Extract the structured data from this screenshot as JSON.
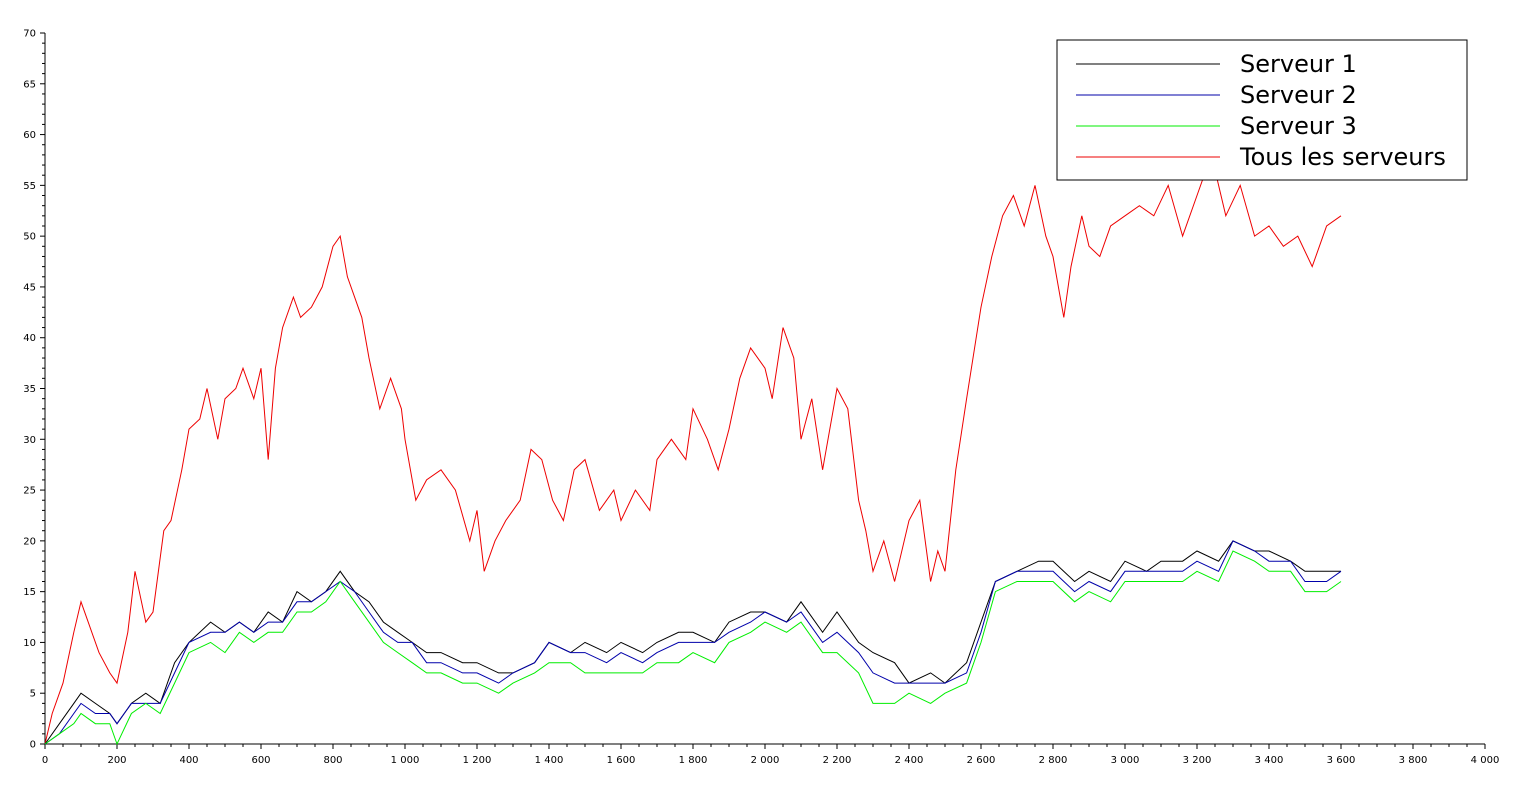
{
  "chart_data": {
    "type": "line",
    "title": "",
    "xlabel": "",
    "ylabel": "",
    "xlim": [
      0,
      4000
    ],
    "ylim": [
      0,
      70
    ],
    "x_ticks": [
      0,
      200,
      400,
      600,
      800,
      1000,
      1200,
      1400,
      1600,
      1800,
      2000,
      2200,
      2400,
      2600,
      2800,
      3000,
      3200,
      3400,
      3600,
      3800,
      4000
    ],
    "x_tick_labels": [
      "0",
      "200",
      "400",
      "600",
      "800",
      "1 000",
      "1 200",
      "1 400",
      "1 600",
      "1 800",
      "2 000",
      "2 200",
      "2 400",
      "2 600",
      "2 800",
      "3 000",
      "3 200",
      "3 400",
      "3 600",
      "3 800",
      "4 000"
    ],
    "y_ticks": [
      0,
      5,
      10,
      15,
      20,
      25,
      30,
      35,
      40,
      45,
      50,
      55,
      60,
      65,
      70
    ],
    "y_tick_labels": [
      "0",
      "5",
      "10",
      "15",
      "20",
      "25",
      "30",
      "35",
      "40",
      "45",
      "50",
      "55",
      "60",
      "65",
      "70"
    ],
    "grid": false,
    "legend_position": "top-right",
    "series": [
      {
        "name": "Serveur 1",
        "color": "#000000",
        "x": [
          0,
          40,
          80,
          100,
          140,
          180,
          200,
          240,
          280,
          320,
          360,
          400,
          460,
          500,
          540,
          580,
          620,
          660,
          700,
          740,
          780,
          820,
          860,
          900,
          940,
          980,
          1020,
          1060,
          1100,
          1160,
          1200,
          1260,
          1300,
          1360,
          1400,
          1460,
          1500,
          1560,
          1600,
          1660,
          1700,
          1760,
          1800,
          1860,
          1900,
          1960,
          2000,
          2060,
          2100,
          2160,
          2200,
          2260,
          2300,
          2360,
          2400,
          2460,
          2500,
          2560,
          2600,
          2640,
          2700,
          2760,
          2800,
          2860,
          2900,
          2960,
          3000,
          3060,
          3100,
          3160,
          3200,
          3260,
          3300,
          3360,
          3400,
          3460,
          3500,
          3560,
          3600
        ],
        "values": [
          0,
          2,
          4,
          5,
          4,
          3,
          2,
          4,
          5,
          4,
          8,
          10,
          12,
          11,
          12,
          11,
          13,
          12,
          15,
          14,
          15,
          17,
          15,
          14,
          12,
          11,
          10,
          9,
          9,
          8,
          8,
          7,
          7,
          8,
          10,
          9,
          10,
          9,
          10,
          9,
          10,
          11,
          11,
          10,
          12,
          13,
          13,
          12,
          14,
          11,
          13,
          10,
          9,
          8,
          6,
          7,
          6,
          8,
          12,
          16,
          17,
          18,
          18,
          16,
          17,
          16,
          18,
          17,
          18,
          18,
          19,
          18,
          20,
          19,
          19,
          18,
          17,
          17,
          17
        ]
      },
      {
        "name": "Serveur 2",
        "color": "#0000aa",
        "x": [
          0,
          40,
          80,
          100,
          140,
          180,
          200,
          240,
          280,
          320,
          360,
          400,
          460,
          500,
          540,
          580,
          620,
          660,
          700,
          740,
          780,
          820,
          860,
          900,
          940,
          980,
          1020,
          1060,
          1100,
          1160,
          1200,
          1260,
          1300,
          1360,
          1400,
          1460,
          1500,
          1560,
          1600,
          1660,
          1700,
          1760,
          1800,
          1860,
          1900,
          1960,
          2000,
          2060,
          2100,
          2160,
          2200,
          2260,
          2300,
          2360,
          2400,
          2460,
          2500,
          2560,
          2600,
          2640,
          2700,
          2760,
          2800,
          2860,
          2900,
          2960,
          3000,
          3060,
          3100,
          3160,
          3200,
          3260,
          3300,
          3360,
          3400,
          3460,
          3500,
          3560,
          3600
        ],
        "values": [
          0,
          1,
          3,
          4,
          3,
          3,
          2,
          4,
          4,
          4,
          7,
          10,
          11,
          11,
          12,
          11,
          12,
          12,
          14,
          14,
          15,
          16,
          15,
          13,
          11,
          10,
          10,
          8,
          8,
          7,
          7,
          6,
          7,
          8,
          10,
          9,
          9,
          8,
          9,
          8,
          9,
          10,
          10,
          10,
          11,
          12,
          13,
          12,
          13,
          10,
          11,
          9,
          7,
          6,
          6,
          6,
          6,
          7,
          11,
          16,
          17,
          17,
          17,
          15,
          16,
          15,
          17,
          17,
          17,
          17,
          18,
          17,
          20,
          19,
          18,
          18,
          16,
          16,
          17
        ]
      },
      {
        "name": "Serveur 3",
        "color": "#00ee00",
        "x": [
          0,
          40,
          80,
          100,
          140,
          180,
          200,
          240,
          280,
          320,
          360,
          400,
          460,
          500,
          540,
          580,
          620,
          660,
          700,
          740,
          780,
          820,
          860,
          900,
          940,
          980,
          1020,
          1060,
          1100,
          1160,
          1200,
          1260,
          1300,
          1360,
          1400,
          1460,
          1500,
          1560,
          1600,
          1660,
          1700,
          1760,
          1800,
          1860,
          1900,
          1960,
          2000,
          2060,
          2100,
          2160,
          2200,
          2260,
          2300,
          2360,
          2400,
          2460,
          2500,
          2560,
          2600,
          2640,
          2700,
          2760,
          2800,
          2860,
          2900,
          2960,
          3000,
          3060,
          3100,
          3160,
          3200,
          3260,
          3300,
          3360,
          3400,
          3460,
          3500,
          3560,
          3600
        ],
        "values": [
          0,
          1,
          2,
          3,
          2,
          2,
          0,
          3,
          4,
          3,
          6,
          9,
          10,
          9,
          11,
          10,
          11,
          11,
          13,
          13,
          14,
          16,
          14,
          12,
          10,
          9,
          8,
          7,
          7,
          6,
          6,
          5,
          6,
          7,
          8,
          8,
          7,
          7,
          7,
          7,
          8,
          8,
          9,
          8,
          10,
          11,
          12,
          11,
          12,
          9,
          9,
          7,
          4,
          4,
          5,
          4,
          5,
          6,
          10,
          15,
          16,
          16,
          16,
          14,
          15,
          14,
          16,
          16,
          16,
          16,
          17,
          16,
          19,
          18,
          17,
          17,
          15,
          15,
          16
        ]
      },
      {
        "name": "Tous les serveurs",
        "color": "#ee0000",
        "x": [
          0,
          20,
          50,
          80,
          100,
          120,
          150,
          180,
          200,
          230,
          250,
          280,
          300,
          330,
          350,
          380,
          400,
          430,
          450,
          480,
          500,
          530,
          550,
          580,
          600,
          620,
          640,
          660,
          690,
          710,
          740,
          770,
          800,
          820,
          840,
          860,
          880,
          900,
          930,
          960,
          990,
          1000,
          1030,
          1060,
          1100,
          1140,
          1180,
          1200,
          1220,
          1250,
          1280,
          1320,
          1350,
          1380,
          1410,
          1440,
          1470,
          1500,
          1540,
          1580,
          1600,
          1640,
          1680,
          1700,
          1740,
          1780,
          1800,
          1840,
          1870,
          1900,
          1930,
          1960,
          2000,
          2020,
          2050,
          2080,
          2100,
          2130,
          2160,
          2200,
          2230,
          2260,
          2280,
          2300,
          2330,
          2360,
          2400,
          2430,
          2460,
          2480,
          2500,
          2530,
          2560,
          2600,
          2630,
          2660,
          2690,
          2720,
          2750,
          2780,
          2800,
          2830,
          2850,
          2880,
          2900,
          2930,
          2960,
          3000,
          3040,
          3080,
          3120,
          3160,
          3200,
          3240,
          3280,
          3320,
          3360,
          3400,
          3440,
          3480,
          3520,
          3560,
          3600
        ],
        "values": [
          0,
          3,
          6,
          11,
          14,
          12,
          9,
          7,
          6,
          11,
          17,
          12,
          13,
          21,
          22,
          27,
          31,
          32,
          35,
          30,
          34,
          35,
          37,
          34,
          37,
          28,
          37,
          41,
          44,
          42,
          43,
          45,
          49,
          50,
          46,
          44,
          42,
          38,
          33,
          36,
          33,
          30,
          24,
          26,
          27,
          25,
          20,
          23,
          17,
          20,
          22,
          24,
          29,
          28,
          24,
          22,
          27,
          28,
          23,
          25,
          22,
          25,
          23,
          28,
          30,
          28,
          33,
          30,
          27,
          31,
          36,
          39,
          37,
          34,
          41,
          38,
          30,
          34,
          27,
          35,
          33,
          24,
          21,
          17,
          20,
          16,
          22,
          24,
          16,
          19,
          17,
          27,
          34,
          43,
          48,
          52,
          54,
          51,
          55,
          50,
          48,
          42,
          47,
          52,
          49,
          48,
          51,
          52,
          53,
          52,
          55,
          50,
          54,
          58,
          52,
          55,
          50,
          51,
          49,
          50,
          47,
          51,
          52
        ]
      }
    ]
  }
}
